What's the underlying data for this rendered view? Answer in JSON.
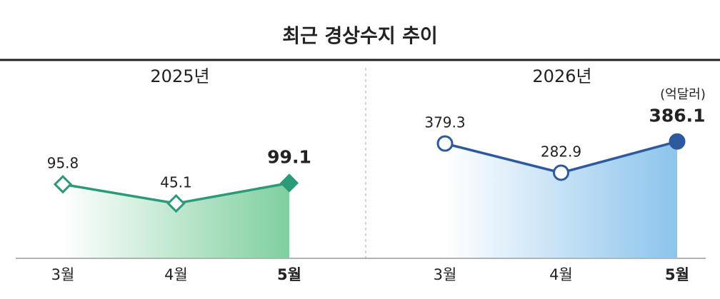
{
  "title": "최근 경상수지 추이",
  "chart_data": [
    {
      "type": "line",
      "subtitle": "2025년",
      "categories": [
        "3월",
        "4월",
        "5월"
      ],
      "values": [
        95.8,
        45.1,
        99.1
      ],
      "color": "#2a9a78",
      "area_color": "#7fcf9f",
      "marker": "diamond",
      "ylim": [
        -100,
        300
      ]
    },
    {
      "type": "line",
      "subtitle": "2026년",
      "unit": "(억달러)",
      "categories": [
        "3월",
        "4월",
        "5월"
      ],
      "values": [
        379.3,
        282.9,
        386.1
      ],
      "color": "#2d5a9e",
      "area_color": "#8cc4ec",
      "marker": "circle",
      "ylim": [
        0,
        500
      ]
    }
  ]
}
